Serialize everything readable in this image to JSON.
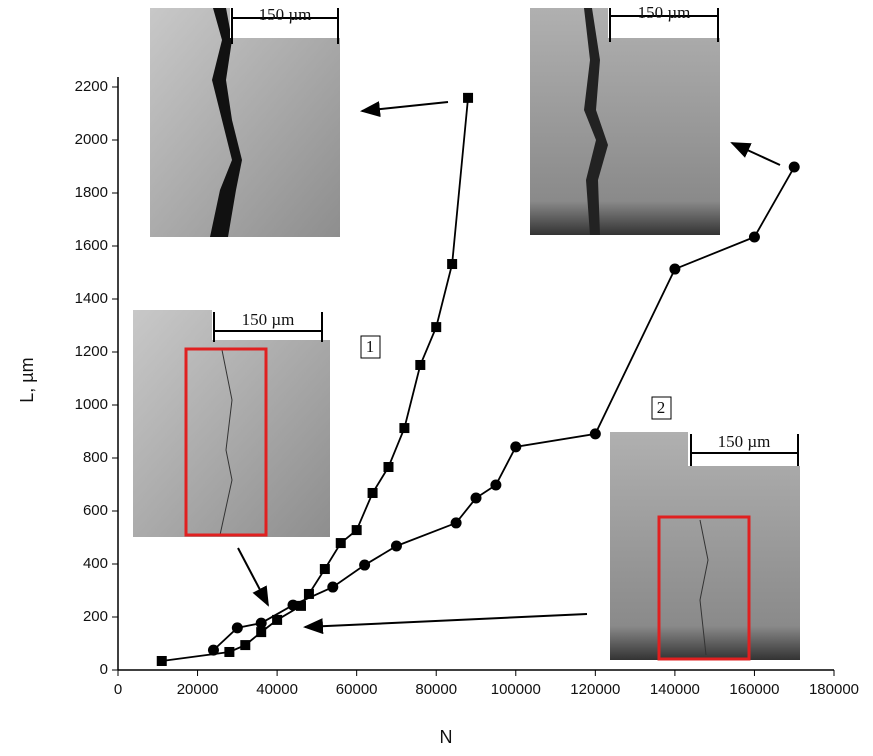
{
  "chart_data": {
    "type": "scatter",
    "x_label": "N",
    "y_label": "L, µm",
    "xlim": [
      0,
      180000
    ],
    "ylim": [
      0,
      2200
    ],
    "xticks": [
      0,
      20000,
      40000,
      60000,
      80000,
      100000,
      120000,
      140000,
      160000,
      180000
    ],
    "yticks": [
      0,
      200,
      400,
      600,
      800,
      1000,
      1200,
      1400,
      1600,
      1800,
      2000,
      2200
    ],
    "series": [
      {
        "name": "1",
        "color": "#000000",
        "marker": "square",
        "x": [
          11000,
          28000,
          32000,
          36000,
          40000,
          46000,
          48000,
          52000,
          56000,
          60000,
          64000,
          68000,
          72000,
          76000,
          80000,
          84000,
          88000
        ],
        "values": [
          34,
          68,
          94,
          143,
          189,
          242,
          287,
          381,
          479,
          528,
          668,
          766,
          913,
          1151,
          1294,
          1532,
          2159
        ]
      },
      {
        "name": "2",
        "color": "#000000",
        "marker": "circle",
        "x": [
          24000,
          30000,
          36000,
          44000,
          54000,
          62000,
          70000,
          85000,
          90000,
          95000,
          100000,
          120000,
          140000,
          160000,
          170000
        ],
        "values": [
          75,
          159,
          177,
          245,
          313,
          396,
          468,
          555,
          649,
          698,
          842,
          891,
          1513,
          1634,
          1898
        ]
      }
    ],
    "insets": [
      "150 µm",
      "150 µm",
      "150 µm",
      "150 µm"
    ]
  }
}
